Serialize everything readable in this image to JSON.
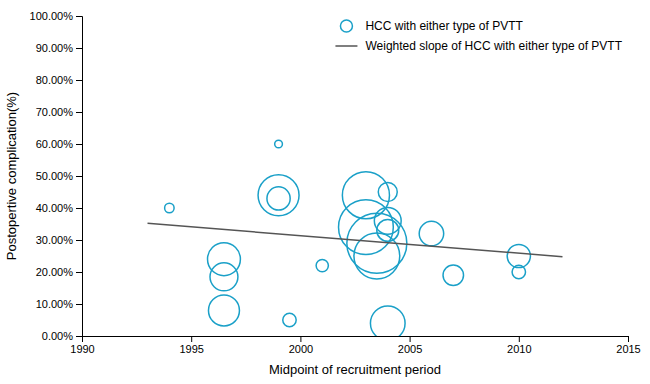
{
  "chart_data": {
    "type": "bubble",
    "xlabel": "Midpoint of recruitment period",
    "ylabel": "Postopertive complication(%)",
    "series": [
      {
        "name": "HCC with either type of PVTT",
        "type": "bubble",
        "color": "#1aA0C8",
        "marker": "circle",
        "x": [
          1994,
          1996.5,
          1996.5,
          1996.5,
          1999,
          1999,
          1999,
          1999.5,
          2001,
          2003,
          2003,
          2003.5,
          2003.5,
          2004,
          2004,
          2004,
          2004,
          2006,
          2007,
          2010,
          2010
        ],
        "values": [
          0.4,
          0.24,
          0.185,
          0.08,
          0.43,
          0.44,
          0.6,
          0.05,
          0.22,
          0.44,
          0.34,
          0.29,
          0.25,
          0.45,
          0.36,
          0.33,
          0.04,
          0.32,
          0.19,
          0.25,
          0.2
        ],
        "sizes": [
          15,
          180,
          130,
          160,
          90,
          280,
          10,
          30,
          25,
          370,
          500,
          600,
          350,
          60,
          120,
          80,
          200,
          100,
          70,
          90,
          30
        ]
      },
      {
        "name": "Weighted slope of HCC with either type of PVTT",
        "type": "line",
        "color": "#555555",
        "line_style": "solid",
        "x": [
          1993,
          2012
        ],
        "values": [
          0.352,
          0.248
        ]
      }
    ],
    "xlim": [
      1990,
      2015
    ],
    "ylim": [
      0.0,
      1.0
    ],
    "xticks": [
      1990,
      1995,
      2000,
      2005,
      2010,
      2015
    ],
    "yticks": [
      {
        "value": 0.0,
        "label": "0.00%"
      },
      {
        "value": 0.1,
        "label": "10.00%"
      },
      {
        "value": 0.2,
        "label": "20.00%"
      },
      {
        "value": 0.3,
        "label": "30.00%"
      },
      {
        "value": 0.4,
        "label": "40.00%"
      },
      {
        "value": 0.5,
        "label": "50.00%"
      },
      {
        "value": 0.6,
        "label": "60.00%"
      },
      {
        "value": 0.7,
        "label": "70.00%"
      },
      {
        "value": 0.8,
        "label": "80.00%"
      },
      {
        "value": 0.9,
        "label": "90.00%"
      },
      {
        "value": 1.0,
        "label": "100.00%"
      }
    ],
    "grid": false,
    "legend": "upper right"
  }
}
